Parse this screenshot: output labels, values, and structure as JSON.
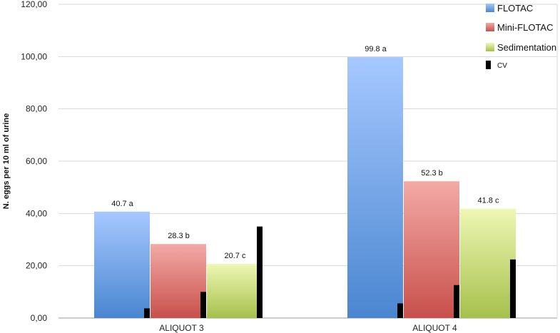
{
  "chart_data": {
    "type": "bar",
    "categories": [
      "ALIQUOT 3",
      "ALIQUOT 4"
    ],
    "ylabel": "N. eggs per 10 ml of urine",
    "xlabel": "",
    "ylim": [
      0,
      120
    ],
    "yticks": [
      "0,00",
      "20,00",
      "40,00",
      "60,00",
      "80,00",
      "100,00",
      "120,00"
    ],
    "ytick_values": [
      0,
      20,
      40,
      60,
      80,
      100,
      120
    ],
    "grid": true,
    "legend_position": "top-right",
    "series": [
      {
        "name": "FLOTAC",
        "values": [
          40.7,
          99.8
        ],
        "labels": [
          "40.7 a",
          "99.8 a"
        ],
        "color_top": "#a6c8ff",
        "color_bottom": "#4a86d0"
      },
      {
        "name": "Mini-FLOTAC",
        "values": [
          28.3,
          52.3
        ],
        "labels": [
          "28.3 b",
          "52.3 b"
        ],
        "color_top": "#f3aaa6",
        "color_bottom": "#c8504b"
      },
      {
        "name": "Sedimentation",
        "values": [
          20.7,
          41.8
        ],
        "labels": [
          "20.7 c",
          "41.8 c"
        ],
        "color_top": "#eef7b4",
        "color_bottom": "#a6c04c"
      },
      {
        "name": "CV",
        "values": [
          [
            3.7,
            10.0,
            35.0
          ],
          [
            5.6,
            12.6,
            22.4
          ]
        ],
        "color": "#000000"
      }
    ]
  }
}
